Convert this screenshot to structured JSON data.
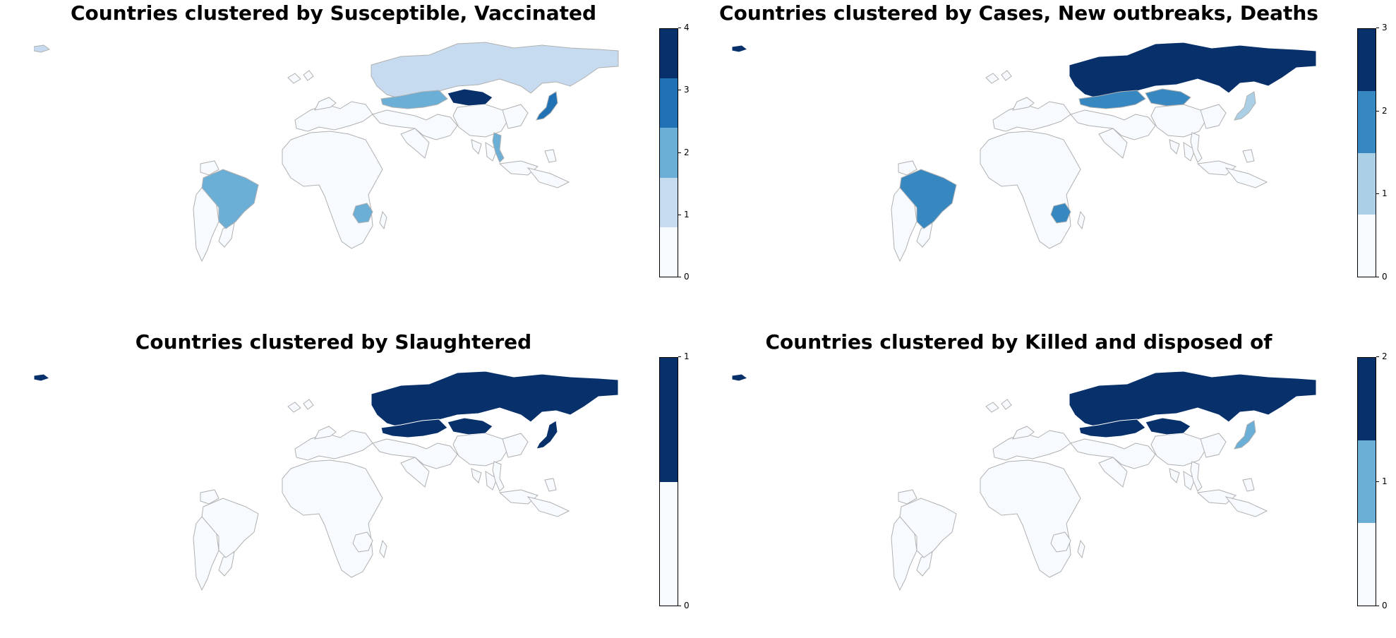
{
  "palette": {
    "2": [
      "#f7fbff",
      "#08306b"
    ],
    "3": [
      "#f7fbff",
      "#6baed6",
      "#08306b"
    ],
    "4": [
      "#f7fbff",
      "#abd0e6",
      "#3787c0",
      "#08306b"
    ],
    "5": [
      "#f7fbff",
      "#c6dbef",
      "#6baed6",
      "#2171b5",
      "#08306b"
    ]
  },
  "border_color": "#b0b0b0",
  "panels": [
    {
      "title": "Countries clustered by Susceptible, Vaccinated",
      "n_clusters": 5,
      "ticks": [
        "0",
        "1",
        "2",
        "3",
        "4"
      ],
      "countries": {
        "Russia": 1,
        "Kazakhstan": 2,
        "Mongolia": 4,
        "Japan": 3,
        "Vietnam": 2,
        "Brazil": 2,
        "Botswana": 2,
        "Alaska": 1
      }
    },
    {
      "title": "Countries clustered by Cases, New outbreaks, Deaths",
      "n_clusters": 4,
      "ticks": [
        "0",
        "1",
        "2",
        "3"
      ],
      "countries": {
        "Russia": 3,
        "Kazakhstan": 2,
        "Mongolia": 2,
        "Japan": 1,
        "Vietnam": 0,
        "Brazil": 2,
        "Botswana": 2,
        "Alaska": 3
      }
    },
    {
      "title": "Countries clustered by Slaughtered",
      "n_clusters": 2,
      "ticks": [
        "0",
        "1"
      ],
      "countries": {
        "Russia": 1,
        "Kazakhstan": 1,
        "Mongolia": 1,
        "Japan": 1,
        "Vietnam": 0,
        "Brazil": 0,
        "Botswana": 0,
        "Alaska": 1
      }
    },
    {
      "title": "Countries clustered by Killed and disposed of",
      "n_clusters": 3,
      "ticks": [
        "0",
        "1",
        "2"
      ],
      "countries": {
        "Russia": 2,
        "Kazakhstan": 2,
        "Mongolia": 2,
        "Japan": 1,
        "Vietnam": 0,
        "Brazil": 0,
        "Botswana": 0,
        "Alaska": 2
      }
    }
  ]
}
